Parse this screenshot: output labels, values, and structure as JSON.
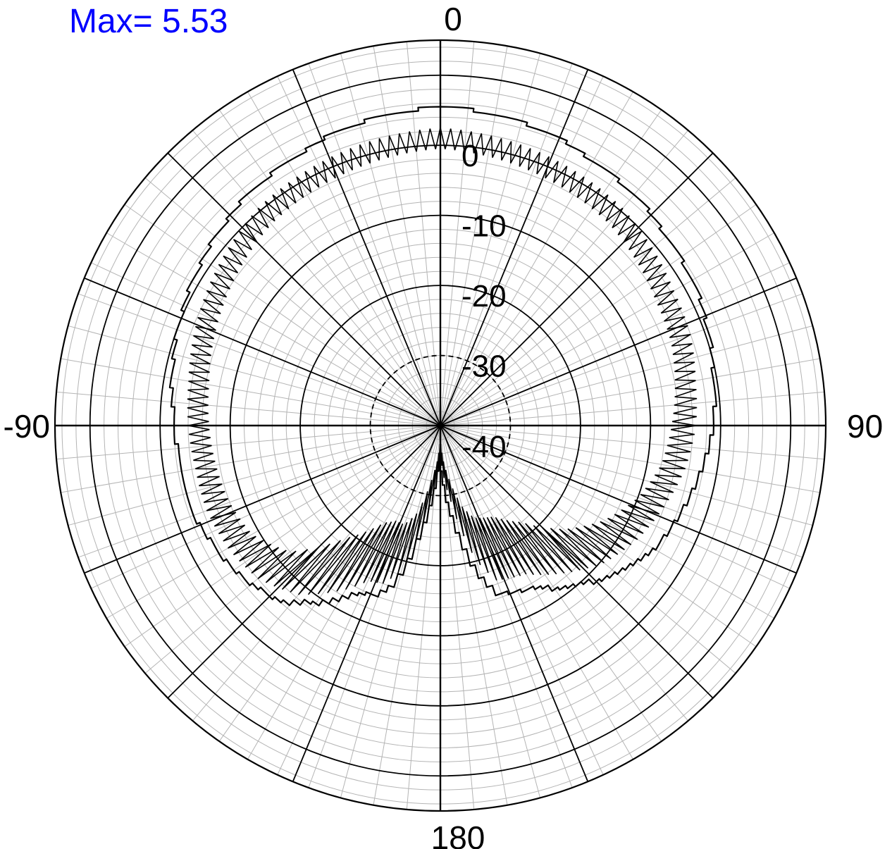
{
  "chart_data": {
    "type": "polar-line",
    "max_annotation": {
      "text": "Max= 5.53",
      "color": "#0000ff"
    },
    "angle_axis": {
      "zero_direction": "top",
      "direction": "clockwise",
      "range_deg": [
        -180,
        180
      ],
      "labels": [
        {
          "angle": 0,
          "text": "0"
        },
        {
          "angle": 90,
          "text": "90"
        },
        {
          "angle": 180,
          "text": "180"
        },
        {
          "angle": -90,
          "text": "-90"
        }
      ],
      "major_spoke_step_deg": 22.5,
      "minor_spoke_step_deg": 5
    },
    "radial_axis": {
      "range_db": [
        -40,
        15
      ],
      "major_circles_db": [
        -30,
        -20,
        -10,
        0,
        10
      ],
      "minor_step_db": 2,
      "dashed_circles_db": [
        -30
      ],
      "tick_labels": [
        {
          "value": 0,
          "text": "0"
        },
        {
          "value": -10,
          "text": "-10"
        },
        {
          "value": -20,
          "text": "-20"
        },
        {
          "value": -30,
          "text": "-30"
        },
        {
          "value": -40,
          "text": "-40"
        }
      ]
    },
    "grid": true,
    "colors": {
      "trace": "#000000",
      "major_grid": "#000000",
      "minor_grid": "#b4b4b4"
    },
    "series": [
      {
        "style": "staircase-envelope",
        "points": [
          [
            -180,
            -36
          ],
          [
            -172,
            -26
          ],
          [
            -165,
            -16.5
          ],
          [
            -160,
            -14
          ],
          [
            -155,
            -13.5
          ],
          [
            -150,
            -11
          ],
          [
            -140,
            -6.5
          ],
          [
            -130,
            -4.5
          ],
          [
            -120,
            -3.5
          ],
          [
            -110,
            -2.5
          ],
          [
            -100,
            -2.5
          ],
          [
            -90,
            -2
          ],
          [
            -80,
            -1
          ],
          [
            -70,
            0
          ],
          [
            -60,
            1
          ],
          [
            -50,
            2
          ],
          [
            -40,
            3
          ],
          [
            -30,
            3.5
          ],
          [
            -20,
            4.5
          ],
          [
            -10,
            5
          ],
          [
            0,
            5.53
          ],
          [
            10,
            5
          ],
          [
            20,
            4.5
          ],
          [
            30,
            3.5
          ],
          [
            40,
            3
          ],
          [
            50,
            2
          ],
          [
            60,
            1.5
          ],
          [
            70,
            0.5
          ],
          [
            80,
            -0.5
          ],
          [
            90,
            -1
          ],
          [
            100,
            -2.5
          ],
          [
            110,
            -3.5
          ],
          [
            120,
            -5
          ],
          [
            130,
            -7.5
          ],
          [
            140,
            -10.5
          ],
          [
            150,
            -13.5
          ],
          [
            160,
            -14.5
          ],
          [
            165,
            -18
          ],
          [
            172,
            -27
          ],
          [
            180,
            -36
          ]
        ]
      },
      {
        "style": "oscillating",
        "peaks": [
          [
            -180,
            -36
          ],
          [
            -172,
            -28
          ],
          [
            -165,
            -18.5
          ],
          [
            -160,
            -16
          ],
          [
            -155,
            -15.5
          ],
          [
            -150,
            -13
          ],
          [
            -140,
            -8.5
          ],
          [
            -130,
            -6
          ],
          [
            -120,
            -5
          ],
          [
            -110,
            -4.5
          ],
          [
            -100,
            -4.5
          ],
          [
            -90,
            -4
          ],
          [
            -80,
            -3.5
          ],
          [
            -70,
            -2.5
          ],
          [
            -60,
            -1.5
          ],
          [
            -50,
            -0.5
          ],
          [
            -40,
            0.5
          ],
          [
            -30,
            1
          ],
          [
            -20,
            1.5
          ],
          [
            -10,
            2
          ],
          [
            0,
            2.5
          ],
          [
            10,
            2
          ],
          [
            20,
            1.5
          ],
          [
            30,
            1
          ],
          [
            40,
            0.5
          ],
          [
            50,
            -0.5
          ],
          [
            60,
            -1.5
          ],
          [
            70,
            -2
          ],
          [
            80,
            -3
          ],
          [
            90,
            -3.5
          ],
          [
            100,
            -4.5
          ],
          [
            110,
            -6
          ],
          [
            120,
            -7.5
          ],
          [
            130,
            -9.5
          ],
          [
            140,
            -12.5
          ],
          [
            150,
            -15.5
          ],
          [
            160,
            -16.5
          ],
          [
            165,
            -20
          ],
          [
            172,
            -29
          ],
          [
            180,
            -36
          ]
        ],
        "troughs": [
          [
            -180,
            -38
          ],
          [
            -172,
            -33
          ],
          [
            -165,
            -27
          ],
          [
            -160,
            -25
          ],
          [
            -155,
            -25
          ],
          [
            -150,
            -24
          ],
          [
            -140,
            -19
          ],
          [
            -130,
            -12
          ],
          [
            -120,
            -9
          ],
          [
            -110,
            -8
          ],
          [
            -100,
            -7.5
          ],
          [
            -90,
            -7
          ],
          [
            -80,
            -6.5
          ],
          [
            -70,
            -5.5
          ],
          [
            -60,
            -4.5
          ],
          [
            -50,
            -3.5
          ],
          [
            -40,
            -2.5
          ],
          [
            -30,
            -2
          ],
          [
            -20,
            -1.5
          ],
          [
            -10,
            -1
          ],
          [
            0,
            -0.5
          ],
          [
            10,
            -1
          ],
          [
            20,
            -1.5
          ],
          [
            30,
            -2
          ],
          [
            40,
            -2.5
          ],
          [
            50,
            -3.5
          ],
          [
            60,
            -4.5
          ],
          [
            70,
            -5
          ],
          [
            80,
            -6
          ],
          [
            90,
            -7
          ],
          [
            100,
            -8
          ],
          [
            110,
            -10
          ],
          [
            120,
            -13
          ],
          [
            130,
            -17
          ],
          [
            140,
            -22
          ],
          [
            150,
            -25
          ],
          [
            160,
            -26
          ],
          [
            165,
            -28
          ],
          [
            172,
            -33
          ],
          [
            180,
            -38
          ]
        ],
        "step_deg": 1
      }
    ]
  }
}
